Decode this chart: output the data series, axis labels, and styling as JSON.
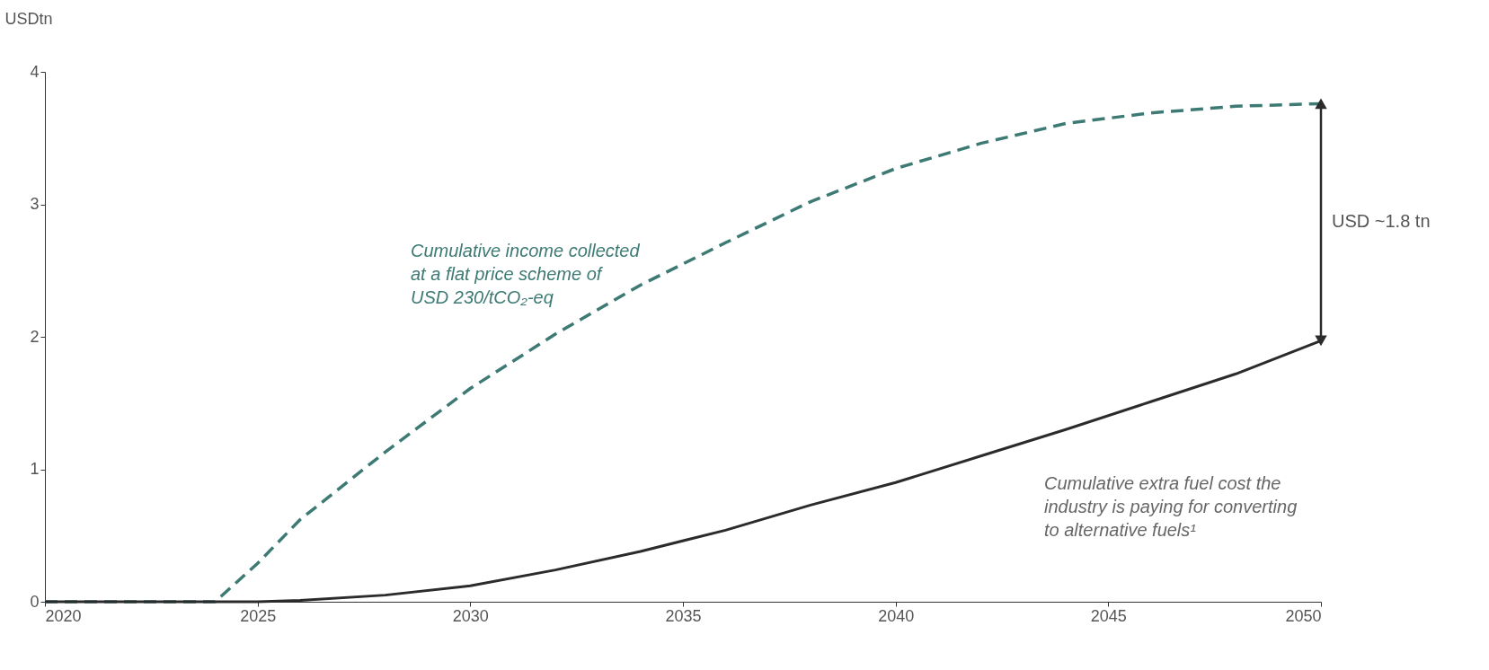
{
  "chart_data": {
    "type": "line",
    "ylabel": "USDtn",
    "x": [
      2020,
      2022,
      2024,
      2025,
      2026,
      2028,
      2030,
      2032,
      2034,
      2036,
      2038,
      2040,
      2042,
      2044,
      2046,
      2048,
      2050
    ],
    "series": [
      {
        "color": "#3d7a74",
        "line_style": "dashed",
        "values": [
          0,
          0,
          0,
          0.29,
          0.62,
          1.13,
          1.61,
          2.02,
          2.39,
          2.71,
          3.02,
          3.27,
          3.46,
          3.61,
          3.69,
          3.74,
          3.76
        ]
      },
      {
        "color": "#2b2b2b",
        "line_style": "solid",
        "values": [
          0,
          0,
          0,
          0,
          0.01,
          0.05,
          0.12,
          0.24,
          0.38,
          0.54,
          0.73,
          0.9,
          1.1,
          1.3,
          1.51,
          1.72,
          1.97
        ]
      }
    ],
    "xlim": [
      2020,
      2050
    ],
    "xticks": [
      2020,
      2025,
      2030,
      2035,
      2040,
      2045,
      2050
    ],
    "ylim": [
      0,
      4
    ],
    "yticks": [
      0,
      1,
      2,
      3,
      4
    ],
    "grid": false,
    "marker": "none",
    "annotations": [
      "Cumulative income collected\nat a flat price scheme of\nUSD 230/tCO₂-eq",
      "Cumulative extra fuel cost the\nindustry is paying for converting\nto alternative fuels¹",
      "USD ~1.8 tn"
    ]
  }
}
